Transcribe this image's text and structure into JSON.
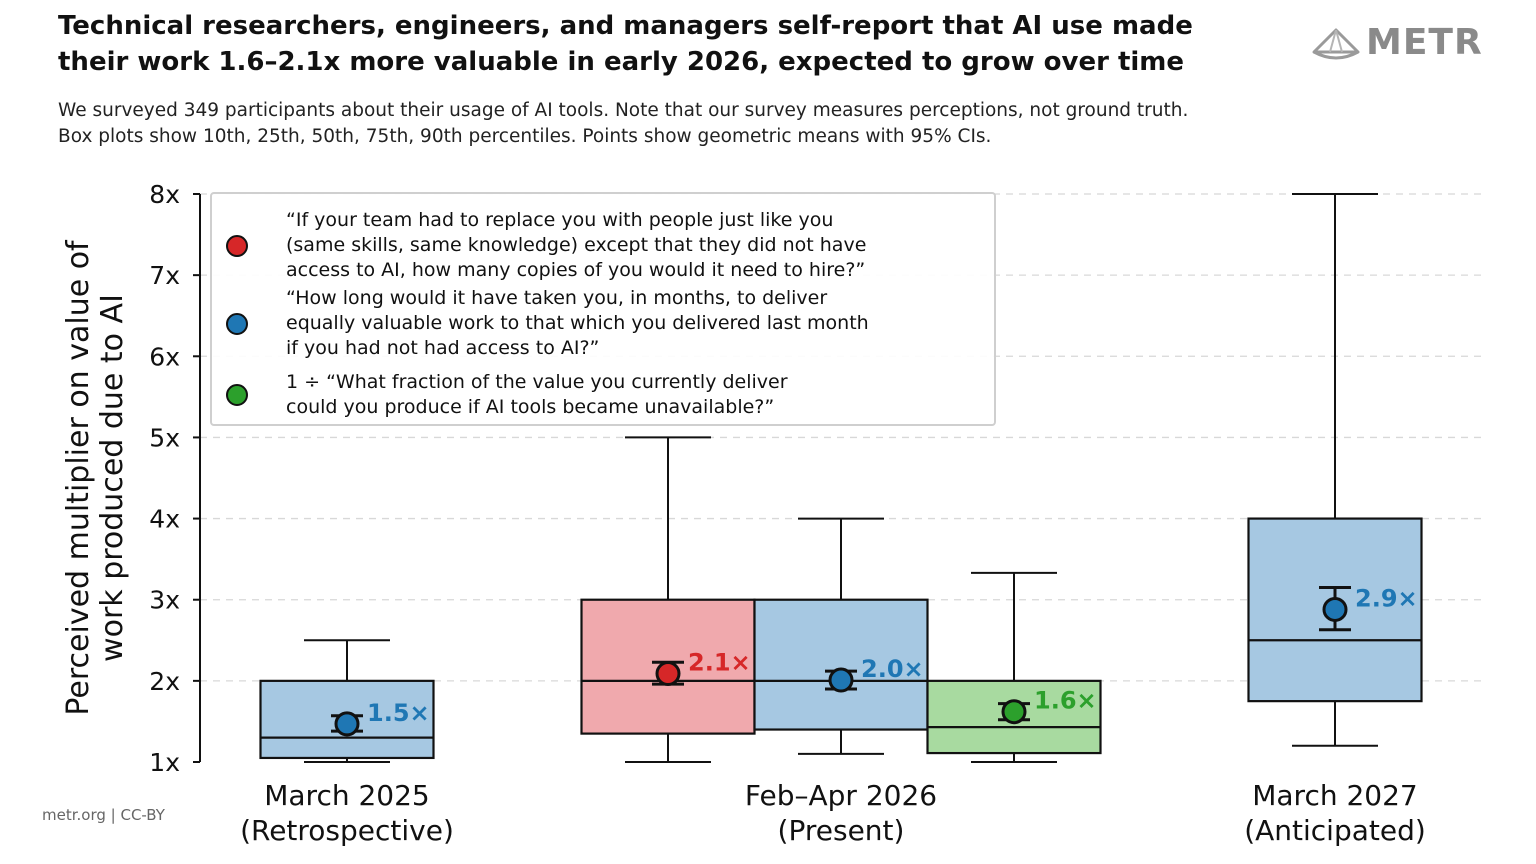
{
  "header": {
    "title_lines": [
      "Technical researchers, engineers, and managers self-report that AI use made",
      "their work 1.6–2.1x more valuable in early 2026, expected to grow over time"
    ],
    "subtitle_lines": [
      "We surveyed 349 participants about their usage of AI tools. Note that our survey measures perceptions, not ground truth.",
      "Box plots show 10th, 25th, 50th, 75th, 90th percentiles. Points show geometric means with 95% CIs."
    ],
    "logo_text": "METR",
    "logo_icon": "metr-logo-icon"
  },
  "footer": {
    "credit": "metr.org  |  CC-BY"
  },
  "colors": {
    "red": "#d62728",
    "red_box": "#f0a9ad",
    "blue": "#1f77b4",
    "blue_box": "#a6c8e2",
    "green": "#2ca02c",
    "green_box": "#a8daa0"
  },
  "chart_data": {
    "type": "box",
    "ylabel_lines": [
      "Perceived multiplier on value of",
      "work produced due to AI"
    ],
    "ylim": [
      1,
      8
    ],
    "yticks": [
      1,
      2,
      3,
      4,
      5,
      6,
      7,
      8
    ],
    "ytick_labels": [
      "1x",
      "2x",
      "3x",
      "4x",
      "5x",
      "6x",
      "7x",
      "8x"
    ],
    "grid": "horizontal-dashed",
    "legend_position": "top-left",
    "groups": [
      {
        "label_lines": [
          "March 2025",
          "(Retrospective)"
        ]
      },
      {
        "label_lines": [
          "Feb–Apr 2026",
          "(Present)"
        ]
      },
      {
        "label_lines": [
          "March 2027",
          "(Anticipated)"
        ]
      }
    ],
    "legend": [
      {
        "color": "red",
        "lines": [
          "“If your team had to replace you with people just like you",
          "(same skills, same knowledge) except that they did not have",
          "access to AI, how many copies of you would it need to hire?”"
        ]
      },
      {
        "color": "blue",
        "lines": [
          "“How long would it have taken you, in months, to deliver",
          "equally valuable work to that which you delivered last month",
          "if you had not had access to AI?”"
        ]
      },
      {
        "color": "green",
        "lines": [
          "1 ÷ “What fraction of the value you currently deliver",
          "could you produce if AI tools became unavailable?”"
        ]
      }
    ],
    "boxes": [
      {
        "group": 0,
        "color": "blue",
        "p10": 1.0,
        "p25": 1.05,
        "p50": 1.3,
        "p75": 2.0,
        "p90": 2.5,
        "mean": 1.47,
        "ci_low": 1.38,
        "ci_high": 1.57,
        "mean_label": "1.5×"
      },
      {
        "group": 1,
        "color": "red",
        "p10": 1.0,
        "p25": 1.35,
        "p50": 2.0,
        "p75": 3.0,
        "p90": 5.0,
        "mean": 2.09,
        "ci_low": 1.96,
        "ci_high": 2.23,
        "mean_label": "2.1×"
      },
      {
        "group": 1,
        "color": "blue",
        "p10": 1.1,
        "p25": 1.4,
        "p50": 2.0,
        "p75": 3.0,
        "p90": 4.0,
        "mean": 2.01,
        "ci_low": 1.9,
        "ci_high": 2.12,
        "mean_label": "2.0×"
      },
      {
        "group": 1,
        "color": "green",
        "p10": 1.0,
        "p25": 1.11,
        "p50": 1.43,
        "p75": 2.0,
        "p90": 3.33,
        "mean": 1.62,
        "ci_low": 1.52,
        "ci_high": 1.72,
        "mean_label": "1.6×"
      },
      {
        "group": 2,
        "color": "blue",
        "p10": 1.2,
        "p25": 1.75,
        "p50": 2.5,
        "p75": 4.0,
        "p90": 8.0,
        "mean": 2.88,
        "ci_low": 2.63,
        "ci_high": 3.15,
        "mean_label": "2.9×"
      }
    ]
  }
}
